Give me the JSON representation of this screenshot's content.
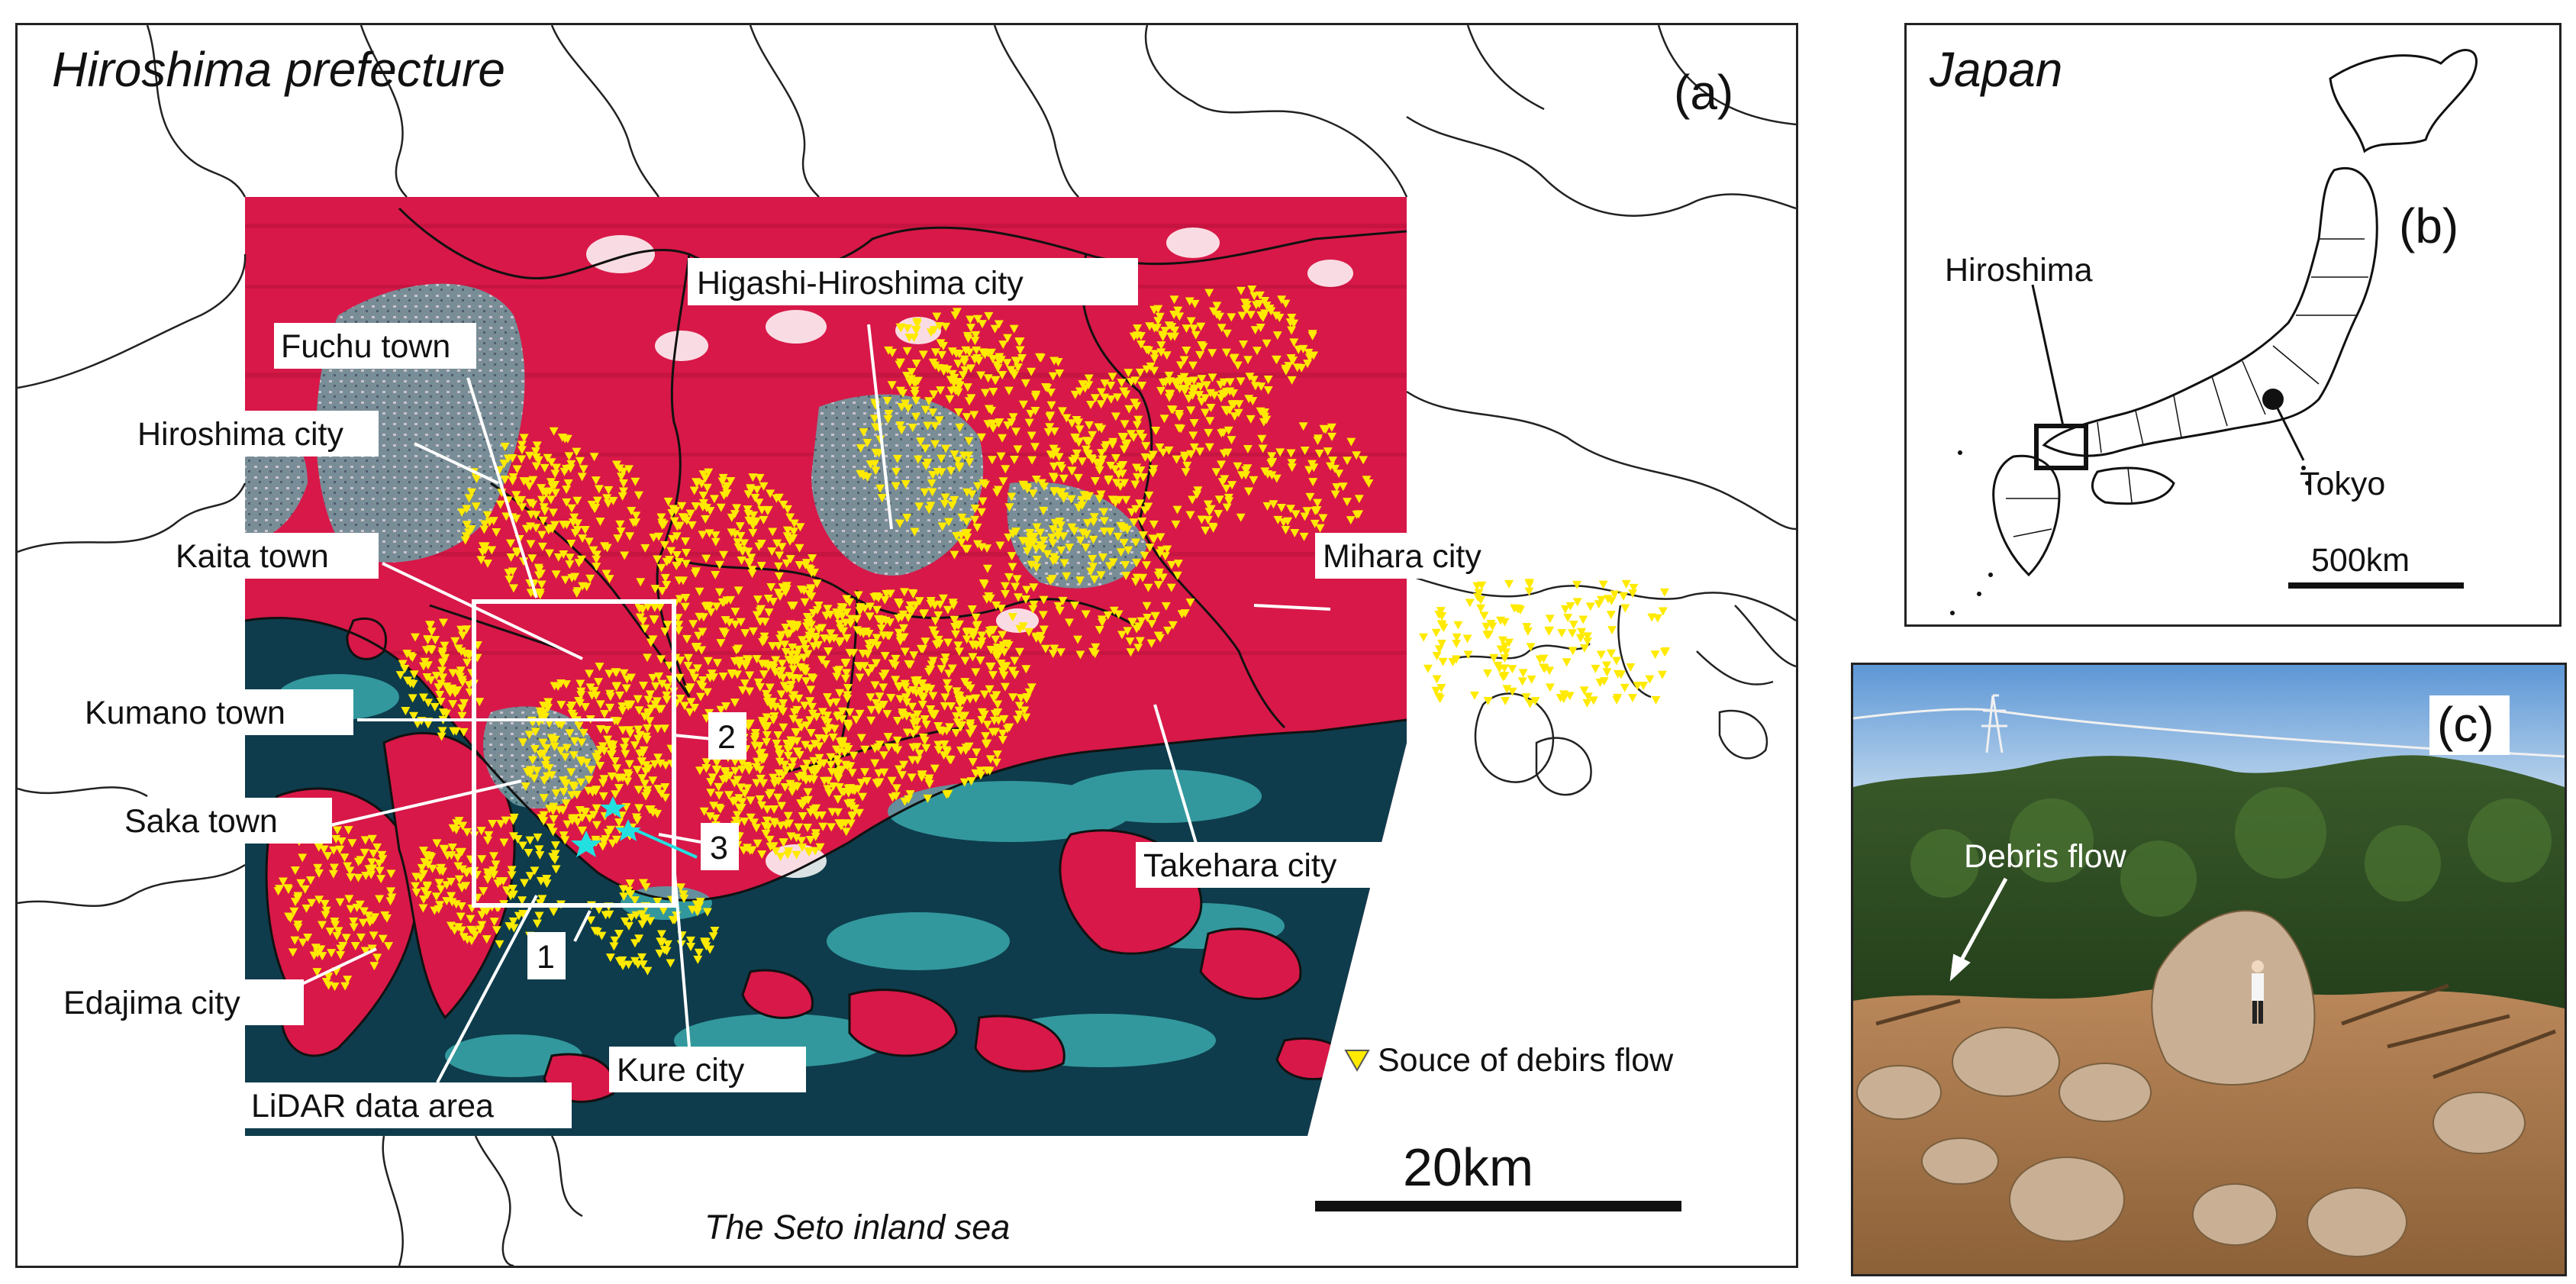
{
  "panel_a": {
    "title": "Hiroshima prefecture",
    "label": "(a)",
    "places": {
      "higashi_hiroshima": "Higashi-Hiroshima city",
      "fuchu": "Fuchu town",
      "hiroshima_city": "Hiroshima city",
      "kaita": "Kaita town",
      "kumano": "Kumano town",
      "saka": "Saka town",
      "edajima": "Edajima city",
      "lidar": "LiDAR data area",
      "kure": "Kure city",
      "mihara": "Mihara city",
      "takehara": "Takehara city"
    },
    "site_numbers": [
      "1",
      "2",
      "3"
    ],
    "legend_label": "Souce of debirs flow",
    "scale_label": "20km",
    "sea_label": "The Seto inland sea",
    "colors": {
      "vegetation": "#d81848",
      "urban": "#6e9aa0",
      "sea": "#0e3c4c",
      "debris_marker": "#ffea00",
      "lidar_box": "#ffffff",
      "survey_marker": "#22e0e0"
    }
  },
  "panel_b": {
    "title": "Japan",
    "label": "(b)",
    "hiroshima_label": "Hiroshima",
    "tokyo_label": "Tokyo",
    "scale_label": "500km"
  },
  "panel_c": {
    "label": "(c)",
    "annotation": "Debris flow"
  }
}
